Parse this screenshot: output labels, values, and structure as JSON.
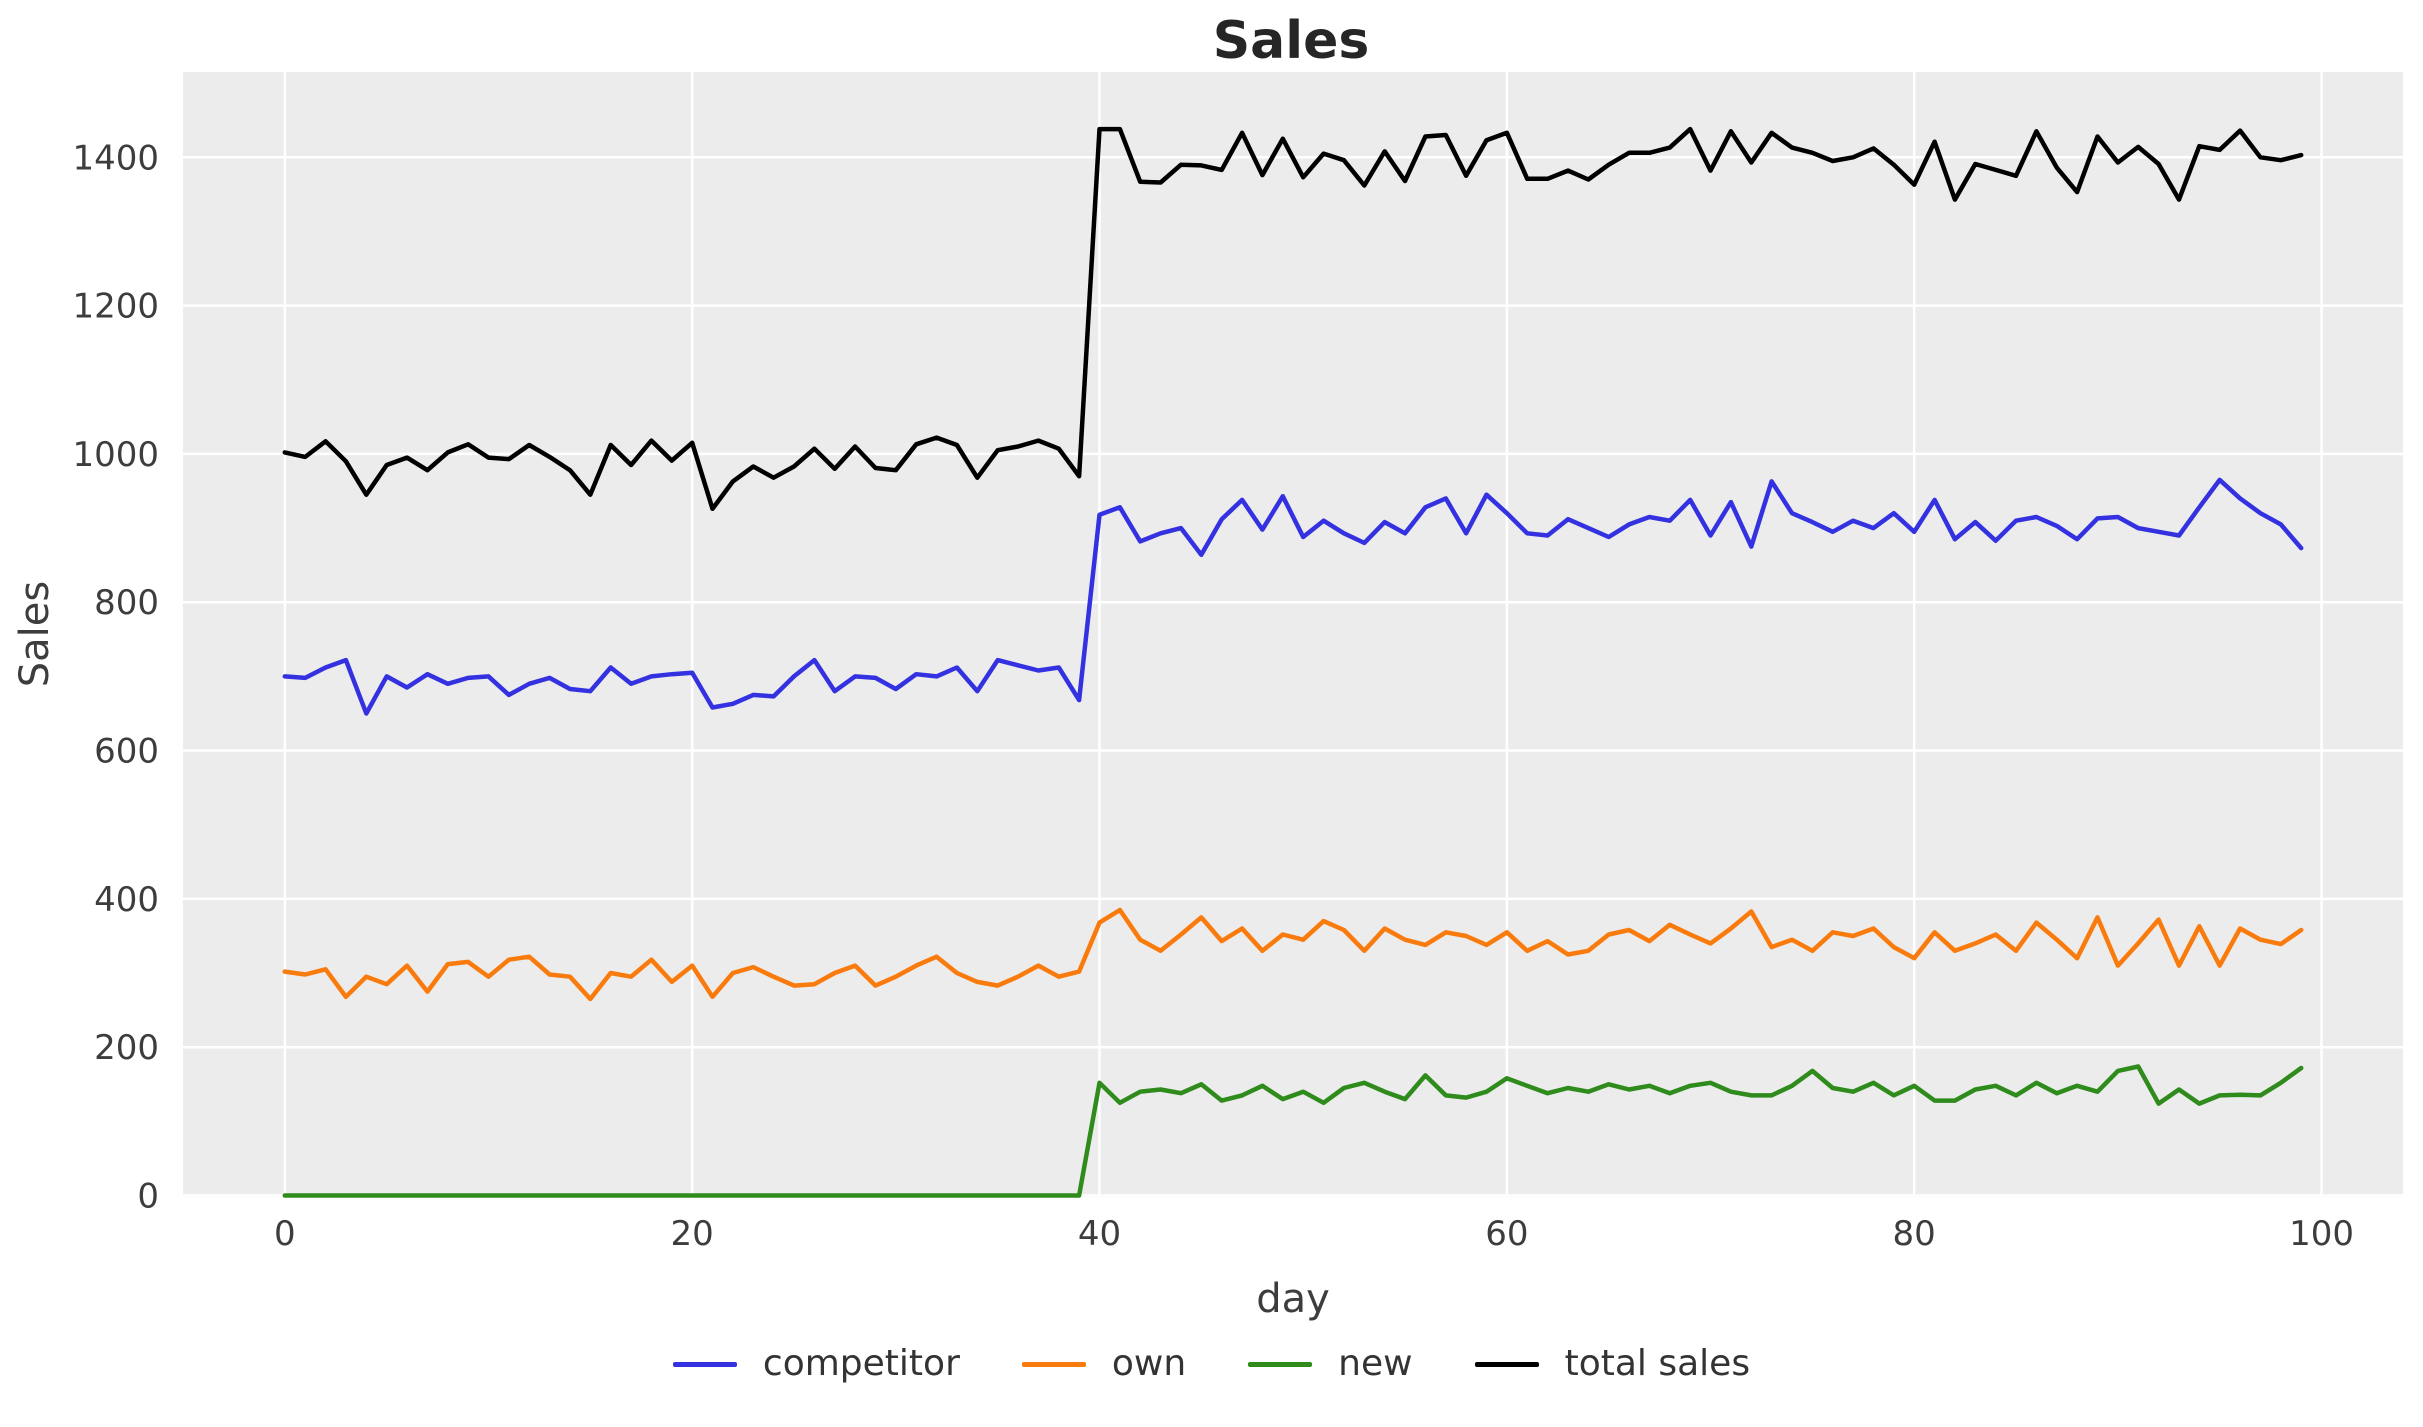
{
  "figure_title": "Sales",
  "chart_data": {
    "type": "line",
    "title": "Sales",
    "xlabel": "day",
    "ylabel": "Sales",
    "grid": true,
    "legend_position": "bottom",
    "plot_background": "#ececec",
    "grid_color": "#ffffff",
    "text_color": "#3d3d3d",
    "xlim": [
      -5,
      104
    ],
    "ylim": [
      -2,
      1515
    ],
    "x_ticks": [
      0,
      20,
      40,
      60,
      80,
      100
    ],
    "y_ticks": [
      0,
      200,
      400,
      600,
      800,
      1000,
      1200,
      1400
    ],
    "x": [
      0,
      1,
      2,
      3,
      4,
      5,
      6,
      7,
      8,
      9,
      10,
      11,
      12,
      13,
      14,
      15,
      16,
      17,
      18,
      19,
      20,
      21,
      22,
      23,
      24,
      25,
      26,
      27,
      28,
      29,
      30,
      31,
      32,
      33,
      34,
      35,
      36,
      37,
      38,
      39,
      40,
      41,
      42,
      43,
      44,
      45,
      46,
      47,
      48,
      49,
      50,
      51,
      52,
      53,
      54,
      55,
      56,
      57,
      58,
      59,
      60,
      61,
      62,
      63,
      64,
      65,
      66,
      67,
      68,
      69,
      70,
      71,
      72,
      73,
      74,
      75,
      76,
      77,
      78,
      79,
      80,
      81,
      82,
      83,
      84,
      85,
      86,
      87,
      88,
      89,
      90,
      91,
      92,
      93,
      94,
      95,
      96,
      97,
      98,
      99
    ],
    "series": [
      {
        "name": "competitor",
        "color": "#3432e0",
        "values": [
          700,
          698,
          712,
          722,
          650,
          700,
          685,
          703,
          690,
          698,
          700,
          675,
          690,
          698,
          683,
          680,
          712,
          690,
          700,
          703,
          705,
          658,
          663,
          675,
          673,
          700,
          722,
          680,
          700,
          698,
          683,
          703,
          700,
          712,
          680,
          722,
          715,
          708,
          712,
          668,
          918,
          928,
          882,
          893,
          900,
          864,
          912,
          938,
          898,
          943,
          888,
          910,
          893,
          880,
          908,
          893,
          928,
          940,
          893,
          945,
          920,
          893,
          890,
          912,
          900,
          888,
          905,
          915,
          910,
          938,
          890,
          935,
          875,
          963,
          920,
          908,
          895,
          910,
          900,
          920,
          895,
          938,
          885,
          908,
          883,
          910,
          915,
          903,
          885,
          913,
          915,
          900,
          895,
          890,
          928,
          965,
          940,
          920,
          905,
          873
        ]
      },
      {
        "name": "own",
        "color": "#f97b0d",
        "values": [
          302,
          298,
          305,
          268,
          295,
          285,
          310,
          275,
          312,
          315,
          295,
          318,
          322,
          298,
          295,
          265,
          300,
          295,
          318,
          288,
          310,
          268,
          300,
          308,
          295,
          283,
          285,
          300,
          310,
          283,
          295,
          310,
          322,
          300,
          288,
          283,
          295,
          310,
          295,
          302,
          368,
          385,
          345,
          330,
          352,
          375,
          343,
          360,
          330,
          352,
          345,
          370,
          358,
          330,
          360,
          345,
          338,
          355,
          350,
          338,
          355,
          330,
          343,
          325,
          330,
          352,
          358,
          343,
          365,
          352,
          340,
          360,
          383,
          335,
          345,
          330,
          355,
          350,
          360,
          335,
          320,
          355,
          330,
          340,
          352,
          330,
          368,
          345,
          320,
          375,
          310,
          340,
          372,
          310,
          363,
          310,
          360,
          345,
          339,
          358
        ]
      },
      {
        "name": "new",
        "color": "#2e8b1c",
        "values": [
          0,
          0,
          0,
          0,
          0,
          0,
          0,
          0,
          0,
          0,
          0,
          0,
          0,
          0,
          0,
          0,
          0,
          0,
          0,
          0,
          0,
          0,
          0,
          0,
          0,
          0,
          0,
          0,
          0,
          0,
          0,
          0,
          0,
          0,
          0,
          0,
          0,
          0,
          0,
          0,
          152,
          125,
          140,
          143,
          138,
          150,
          128,
          135,
          148,
          130,
          140,
          125,
          145,
          152,
          140,
          130,
          162,
          135,
          132,
          140,
          158,
          148,
          138,
          145,
          140,
          150,
          143,
          148,
          138,
          148,
          152,
          140,
          135,
          135,
          148,
          168,
          145,
          140,
          152,
          135,
          148,
          128,
          128,
          143,
          148,
          135,
          152,
          138,
          148,
          140,
          168,
          174,
          124,
          143,
          124,
          135,
          136,
          135,
          152,
          172
        ]
      },
      {
        "name": "total sales",
        "color": "#000000",
        "values": [
          1002,
          996,
          1017,
          990,
          945,
          985,
          995,
          978,
          1002,
          1013,
          995,
          993,
          1012,
          996,
          978,
          945,
          1012,
          985,
          1018,
          991,
          1015,
          926,
          963,
          983,
          968,
          983,
          1007,
          980,
          1010,
          981,
          978,
          1013,
          1022,
          1012,
          968,
          1005,
          1010,
          1018,
          1007,
          970,
          1438,
          1438,
          1367,
          1366,
          1390,
          1389,
          1383,
          1433,
          1376,
          1425,
          1373,
          1405,
          1396,
          1362,
          1408,
          1368,
          1428,
          1430,
          1375,
          1423,
          1433,
          1371,
          1371,
          1382,
          1370,
          1390,
          1406,
          1406,
          1413,
          1438,
          1382,
          1435,
          1393,
          1433,
          1413,
          1406,
          1395,
          1400,
          1412,
          1390,
          1363,
          1421,
          1343,
          1391,
          1383,
          1375,
          1435,
          1386,
          1353,
          1428,
          1393,
          1414,
          1391,
          1343,
          1415,
          1410,
          1436,
          1400,
          1396,
          1403
        ]
      }
    ]
  }
}
